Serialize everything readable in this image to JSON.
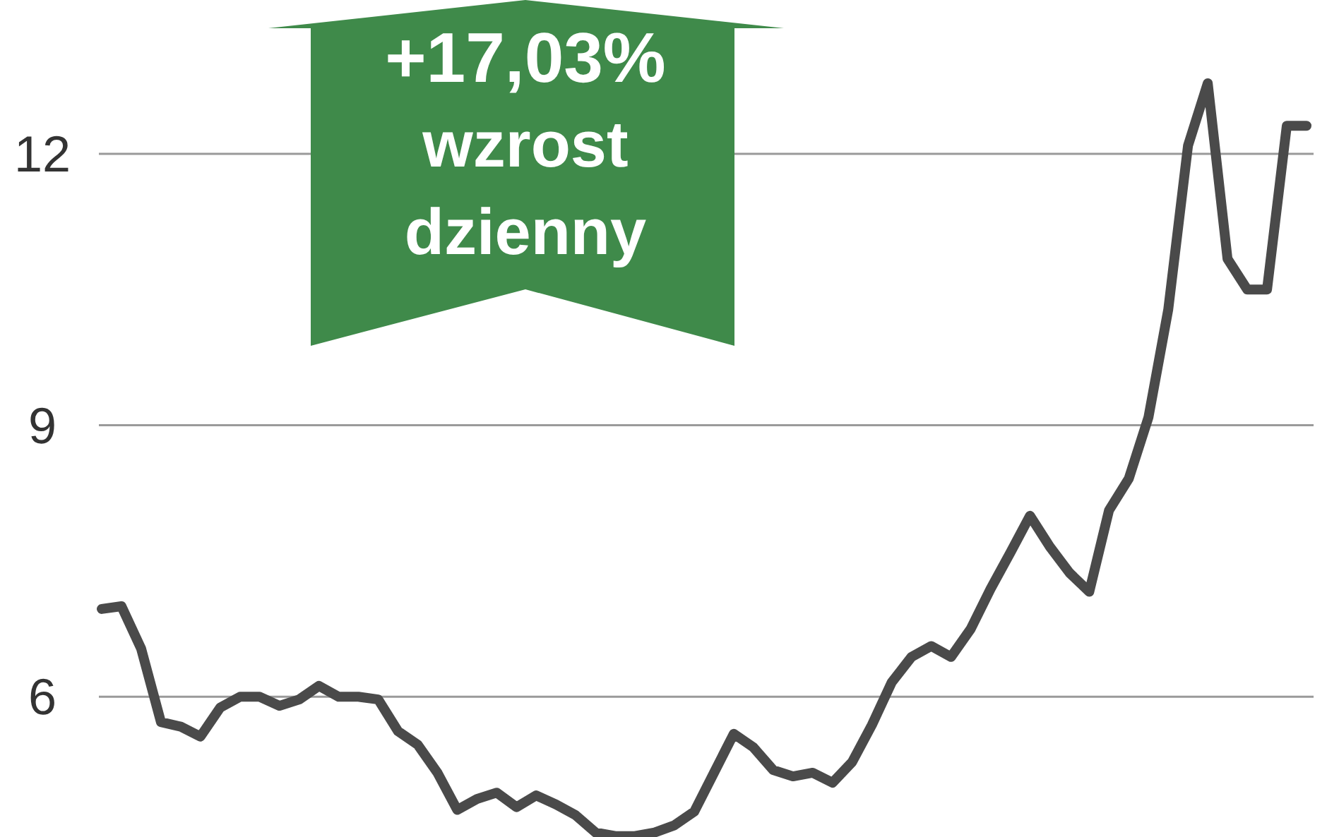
{
  "chart_data": {
    "type": "line",
    "categories": [
      null,
      null,
      null,
      null,
      null,
      null,
      null,
      null,
      null,
      null,
      null,
      null,
      null,
      null,
      null,
      null,
      null,
      null,
      null,
      null,
      null,
      null,
      null,
      null,
      null,
      null,
      null,
      null,
      null,
      null,
      null,
      null,
      null,
      null,
      null,
      null,
      null,
      null,
      null,
      null,
      null,
      null,
      null,
      null,
      null,
      null,
      null,
      null,
      null,
      null,
      null,
      null,
      null,
      null,
      null,
      null,
      null,
      null,
      null,
      null,
      null,
      null
    ],
    "series": [
      {
        "color": "#4a4a4a",
        "values": [
          6.97,
          7.0,
          6.53,
          5.72,
          5.67,
          5.56,
          5.88,
          6.0,
          6.0,
          5.9,
          5.97,
          6.12,
          6.0,
          6.0,
          5.97,
          5.62,
          5.47,
          5.16,
          4.75,
          4.87,
          4.94,
          4.78,
          4.91,
          4.81,
          4.69,
          4.5,
          4.46,
          4.46,
          4.5,
          4.58,
          4.73,
          5.16,
          5.59,
          5.44,
          5.19,
          5.12,
          5.16,
          5.05,
          5.28,
          5.69,
          6.16,
          6.44,
          6.56,
          6.44,
          6.75,
          7.19,
          7.59,
          8.0,
          7.66,
          7.37,
          7.16,
          8.06,
          8.41,
          9.09,
          10.28,
          12.09,
          12.78,
          10.84,
          10.5,
          10.5,
          12.31,
          12.31
        ]
      }
    ],
    "ylim": [
      4.45,
      13.7
    ],
    "yticks": [
      6,
      9,
      12
    ],
    "grid": "y",
    "tick_labels": "y",
    "marker": "none",
    "line_style": "solid",
    "annotations": [
      "+17,03%",
      "wzrost",
      "dzienny"
    ]
  }
}
